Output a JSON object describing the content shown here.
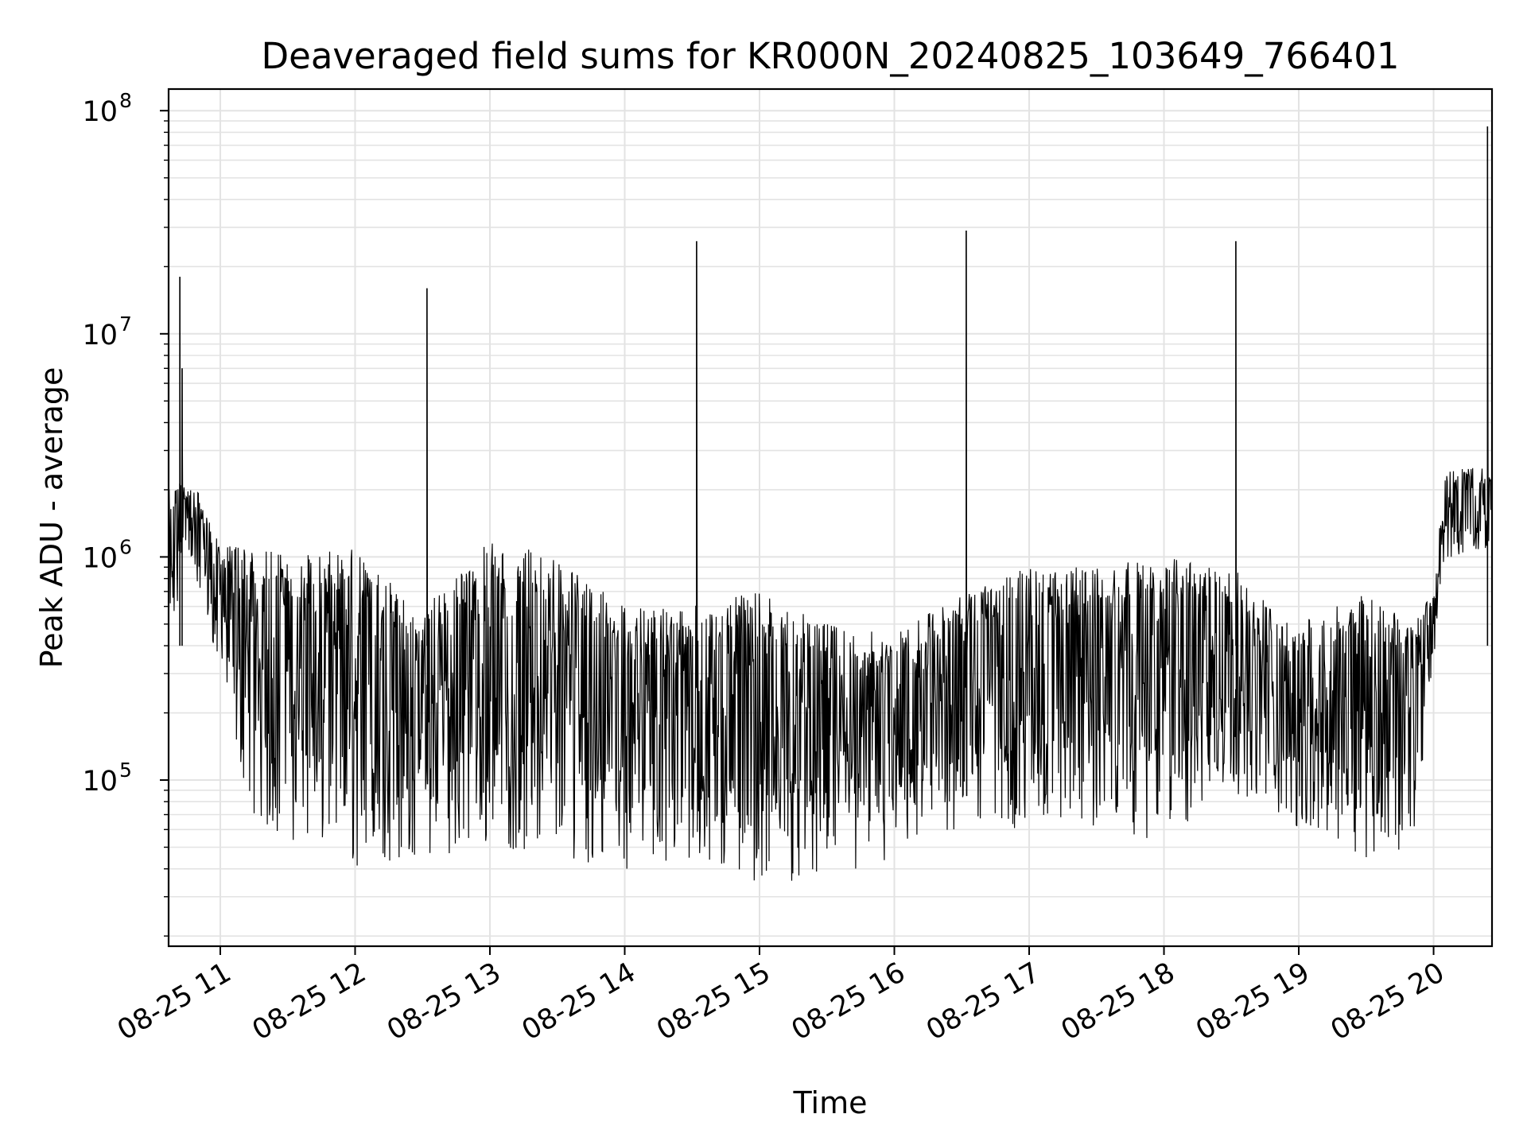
{
  "chart_data": {
    "type": "line",
    "title": "Deaveraged field sums for KR000N_20240825_103649_766401",
    "xlabel": "Time",
    "ylabel": "Peak ADU - average",
    "x_axis": {
      "kind": "datetime",
      "range": [
        "2024-08-25 10:37",
        "2024-08-25 20:26"
      ],
      "ticks": [
        {
          "t": "2024-08-25 11:00",
          "label": "08-25 11"
        },
        {
          "t": "2024-08-25 12:00",
          "label": "08-25 12"
        },
        {
          "t": "2024-08-25 13:00",
          "label": "08-25 13"
        },
        {
          "t": "2024-08-25 14:00",
          "label": "08-25 14"
        },
        {
          "t": "2024-08-25 15:00",
          "label": "08-25 15"
        },
        {
          "t": "2024-08-25 16:00",
          "label": "08-25 16"
        },
        {
          "t": "2024-08-25 17:00",
          "label": "08-25 17"
        },
        {
          "t": "2024-08-25 18:00",
          "label": "08-25 18"
        },
        {
          "t": "2024-08-25 19:00",
          "label": "08-25 19"
        },
        {
          "t": "2024-08-25 20:00",
          "label": "08-25 20"
        }
      ]
    },
    "y_axis": {
      "scale": "log",
      "range": [
        18000,
        125000000
      ],
      "ticks": [
        {
          "value": 100000,
          "base": "10",
          "exp": "5"
        },
        {
          "value": 1000000,
          "base": "10",
          "exp": "6"
        },
        {
          "value": 10000000,
          "base": "10",
          "exp": "7"
        },
        {
          "value": 100000000,
          "base": "10",
          "exp": "8"
        }
      ]
    },
    "grid": true,
    "series": [
      {
        "color": "#000000",
        "spikes": [
          {
            "t": "2024-08-25 10:42",
            "y": 18000000
          },
          {
            "t": "2024-08-25 10:43",
            "y": 7000000
          },
          {
            "t": "2024-08-25 12:32",
            "y": 16000000
          },
          {
            "t": "2024-08-25 14:32",
            "y": 26000000
          },
          {
            "t": "2024-08-25 16:32",
            "y": 29000000
          },
          {
            "t": "2024-08-25 18:32",
            "y": 26000000
          },
          {
            "t": "2024-08-25 20:24",
            "y": 85000000
          }
        ],
        "envelope": [
          {
            "t": "2024-08-25 10:37",
            "low": 300000,
            "high": 2500000
          },
          {
            "t": "2024-08-25 10:45",
            "low": 1000000,
            "high": 2000000
          },
          {
            "t": "2024-08-25 10:50",
            "low": 700000,
            "high": 2000000
          },
          {
            "t": "2024-08-25 11:00",
            "low": 300000,
            "high": 1100000
          },
          {
            "t": "2024-08-25 11:15",
            "low": 60000,
            "high": 1200000
          },
          {
            "t": "2024-08-25 11:30",
            "low": 55000,
            "high": 1000000
          },
          {
            "t": "2024-08-25 12:00",
            "low": 40000,
            "high": 1100000
          },
          {
            "t": "2024-08-25 12:30",
            "low": 45000,
            "high": 600000
          },
          {
            "t": "2024-08-25 13:00",
            "low": 50000,
            "high": 1200000
          },
          {
            "t": "2024-08-25 13:30",
            "low": 45000,
            "high": 1000000
          },
          {
            "t": "2024-08-25 14:00",
            "low": 40000,
            "high": 600000
          },
          {
            "t": "2024-08-25 14:30",
            "low": 40000,
            "high": 600000
          },
          {
            "t": "2024-08-25 15:00",
            "low": 35000,
            "high": 700000
          },
          {
            "t": "2024-08-25 15:30",
            "low": 35000,
            "high": 500000
          },
          {
            "t": "2024-08-25 16:00",
            "low": 40000,
            "high": 450000
          },
          {
            "t": "2024-08-25 16:30",
            "low": 60000,
            "high": 700000
          },
          {
            "t": "2024-08-25 17:00",
            "low": 60000,
            "high": 900000
          },
          {
            "t": "2024-08-25 17:30",
            "low": 60000,
            "high": 900000
          },
          {
            "t": "2024-08-25 18:00",
            "low": 50000,
            "high": 1000000
          },
          {
            "t": "2024-08-25 18:30",
            "low": 90000,
            "high": 900000
          },
          {
            "t": "2024-08-25 19:00",
            "low": 60000,
            "high": 500000
          },
          {
            "t": "2024-08-25 19:30",
            "low": 45000,
            "high": 700000
          },
          {
            "t": "2024-08-25 19:50",
            "low": 45000,
            "high": 500000
          },
          {
            "t": "2024-08-25 20:00",
            "low": 300000,
            "high": 700000
          },
          {
            "t": "2024-08-25 20:05",
            "low": 1000000,
            "high": 2500000
          },
          {
            "t": "2024-08-25 20:26",
            "low": 1000000,
            "high": 2500000
          }
        ]
      }
    ]
  }
}
